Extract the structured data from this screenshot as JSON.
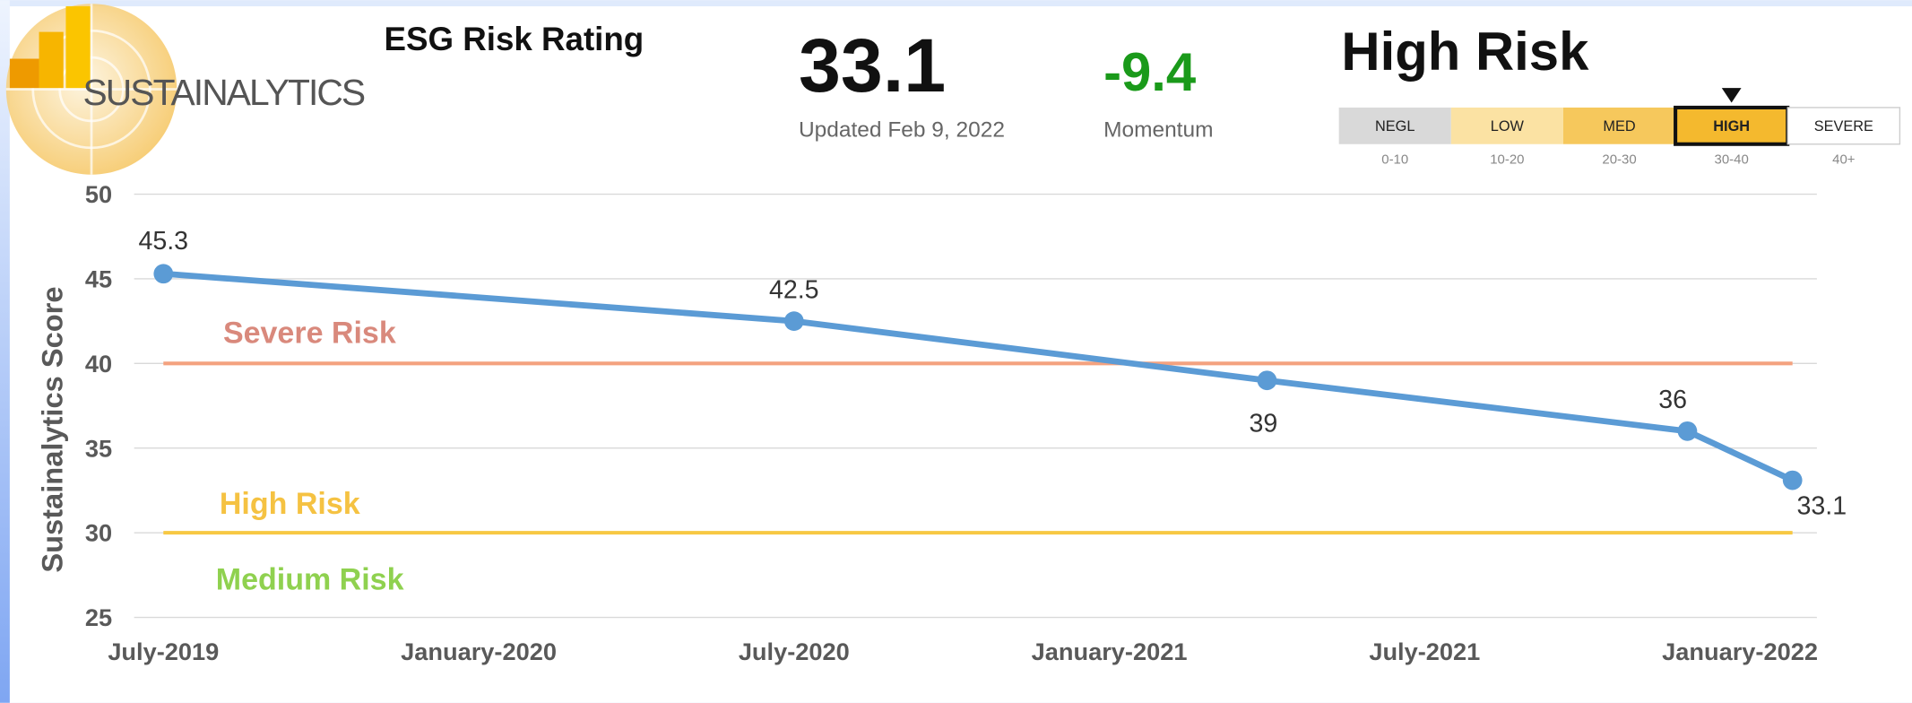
{
  "header": {
    "logo": "SUSTAINALYTICS",
    "title": "ESG Risk Rating",
    "score": "33.1",
    "updated": "Updated Feb 9, 2022",
    "momentum": "-9.4",
    "momentum_label": "Momentum",
    "risk": "High Risk",
    "scale": [
      {
        "name": "NEGL",
        "range": "0-10",
        "color": "#d9d9d9"
      },
      {
        "name": "LOW",
        "range": "10-20",
        "color": "#fbe2a3"
      },
      {
        "name": "MED",
        "range": "20-30",
        "color": "#f6c85c"
      },
      {
        "name": "HIGH",
        "range": "30-40",
        "color": "#f4b92e"
      },
      {
        "name": "SEVERE",
        "range": "40+",
        "color": "#ffffff"
      }
    ],
    "selected_index": 3
  },
  "chart_data": {
    "type": "line",
    "y_label": "Sustainalytics Score",
    "x": [
      "2019-07",
      "2020-07",
      "2021-04",
      "2021-12",
      "2022-02"
    ],
    "series": [
      {
        "name": "Sustainalytics Score",
        "color": "#5b9bd5",
        "values": [
          45.3,
          42.5,
          39,
          36,
          33.1
        ]
      }
    ],
    "xlim": [
      "2019-07",
      "2022-02"
    ],
    "xticks": [
      {
        "value": "2019-07",
        "label": "July-2019"
      },
      {
        "value": "2020-01",
        "label": "January-2020"
      },
      {
        "value": "2020-07",
        "label": "July-2020"
      },
      {
        "value": "2021-01",
        "label": "January-2021"
      },
      {
        "value": "2021-07",
        "label": "July-2021"
      },
      {
        "value": "2022-01",
        "label": "January-2022"
      }
    ],
    "ylim": [
      25,
      50
    ],
    "yticks": [
      25,
      30,
      35,
      40,
      45,
      50
    ],
    "grid": true,
    "thresholds": [
      {
        "label": "Severe Risk",
        "value": 40,
        "color": "#f4a27f",
        "label_color": "#d9897c"
      },
      {
        "label": "High Risk",
        "value": 30,
        "color": "#f7c843",
        "label_color": "#f5c242"
      }
    ],
    "annotations": [
      {
        "text": "Medium Risk",
        "color": "#8fd14f"
      }
    ]
  }
}
